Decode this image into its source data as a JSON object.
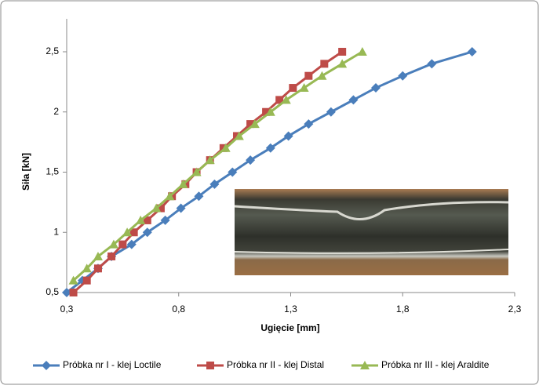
{
  "chart_data": {
    "type": "scatter-line",
    "xlabel": "Ugięcie [mm]",
    "ylabel": "Siła  [kN]",
    "xlim": [
      0.3,
      2.3
    ],
    "xticks": [
      {
        "value": 0.3,
        "label": "0,3"
      },
      {
        "value": 0.8,
        "label": "0,8"
      },
      {
        "value": 1.3,
        "label": "1,3"
      },
      {
        "value": 1.8,
        "label": "1,8"
      },
      {
        "value": 2.3,
        "label": "2,3"
      }
    ],
    "ylim": [
      0.5,
      2.5
    ],
    "yticks": [
      {
        "value": 0.5,
        "label": "0,5"
      },
      1,
      {
        "value": 1.5,
        "label": "1,5"
      },
      2,
      {
        "value": 2.5,
        "label": "2,5"
      }
    ],
    "grid": false,
    "legend": "bottom",
    "series": [
      {
        "name": "Próbka nr I - klej Loctile",
        "color": "#4a7ebb",
        "marker": "diamond",
        "x": [
          0.3,
          0.37,
          0.44,
          0.5,
          0.59,
          0.66,
          0.74,
          0.81,
          0.89,
          0.96,
          1.04,
          1.12,
          1.21,
          1.29,
          1.38,
          1.48,
          1.58,
          1.68,
          1.8,
          1.93,
          2.11
        ],
        "values": [
          0.5,
          0.6,
          0.7,
          0.8,
          0.9,
          1.0,
          1.1,
          1.2,
          1.3,
          1.4,
          1.5,
          1.6,
          1.7,
          1.8,
          1.9,
          2.0,
          2.1,
          2.2,
          2.3,
          2.4,
          2.5
        ]
      },
      {
        "name": "Próbka nr II - klej Distal",
        "color": "#be4b48",
        "marker": "square",
        "x": [
          0.33,
          0.39,
          0.44,
          0.5,
          0.55,
          0.6,
          0.66,
          0.72,
          0.77,
          0.83,
          0.88,
          0.94,
          1.0,
          1.06,
          1.12,
          1.19,
          1.25,
          1.31,
          1.38,
          1.45,
          1.53
        ],
        "values": [
          0.5,
          0.6,
          0.7,
          0.8,
          0.9,
          1.0,
          1.1,
          1.2,
          1.3,
          1.4,
          1.5,
          1.6,
          1.7,
          1.8,
          1.9,
          2.0,
          2.1,
          2.2,
          2.3,
          2.4,
          2.5
        ]
      },
      {
        "name": "Próbka nr III - klej Araldite",
        "color": "#98b954",
        "marker": "triangle",
        "x": [
          0.33,
          0.39,
          0.44,
          0.51,
          0.57,
          0.63,
          0.7,
          0.76,
          0.82,
          0.88,
          0.94,
          1.01,
          1.07,
          1.14,
          1.21,
          1.28,
          1.36,
          1.44,
          1.53,
          1.62
        ],
        "values": [
          0.6,
          0.7,
          0.8,
          0.9,
          1.0,
          1.1,
          1.2,
          1.3,
          1.4,
          1.5,
          1.6,
          1.7,
          1.8,
          1.9,
          2.0,
          2.1,
          2.2,
          2.3,
          2.4,
          2.5
        ]
      }
    ]
  }
}
